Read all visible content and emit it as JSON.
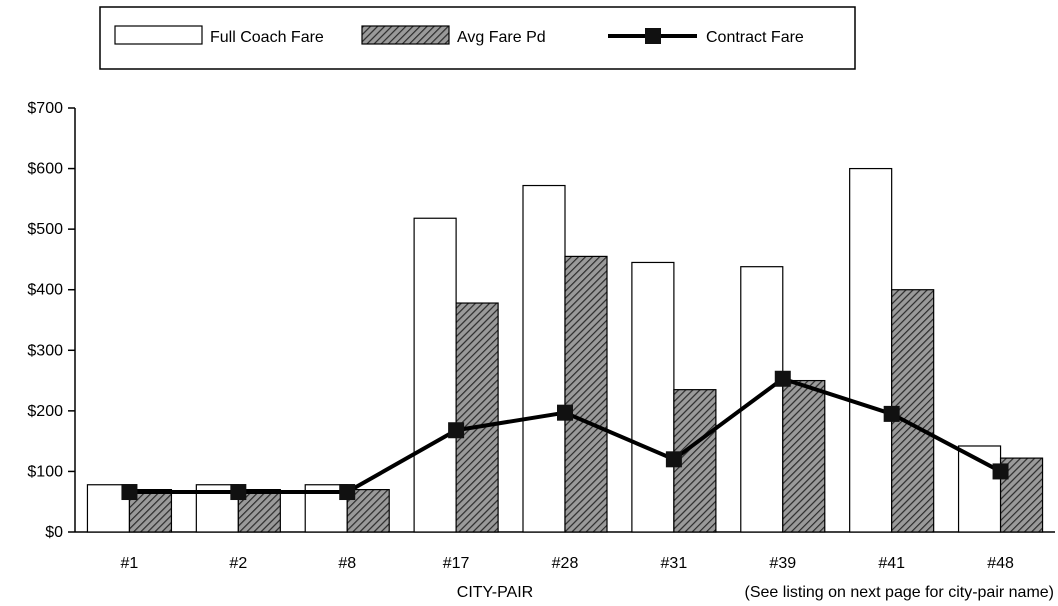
{
  "chart_data": {
    "type": "bar",
    "categories": [
      "#1",
      "#2",
      "#8",
      "#17",
      "#28",
      "#31",
      "#39",
      "#41",
      "#48"
    ],
    "series": [
      {
        "name": "Full Coach Fare",
        "kind": "bar",
        "values": [
          78,
          78,
          78,
          518,
          572,
          445,
          438,
          600,
          142
        ],
        "color": "#ffffff",
        "pattern": "none"
      },
      {
        "name": "Avg Fare Pd",
        "kind": "bar",
        "values": [
          70,
          70,
          70,
          378,
          455,
          235,
          250,
          400,
          122
        ],
        "color": "#6e6e6e",
        "pattern": "diagonal-hatch"
      },
      {
        "name": "Contract Fare",
        "kind": "line",
        "values": [
          66,
          66,
          66,
          168,
          197,
          120,
          253,
          195,
          100
        ],
        "color": "#000000",
        "marker": "square"
      }
    ],
    "title": "",
    "xlabel": "CITY-PAIR",
    "xnote": "(See listing on next page for city-pair name)",
    "ylabel": "",
    "ylim": [
      0,
      700
    ],
    "yticks": [
      {
        "value": 0,
        "label": "$0"
      },
      {
        "value": 100,
        "label": "$100"
      },
      {
        "value": 200,
        "label": "$200"
      },
      {
        "value": 300,
        "label": "$300"
      },
      {
        "value": 400,
        "label": "$400"
      },
      {
        "value": 500,
        "label": "$500"
      },
      {
        "value": 600,
        "label": "$600"
      },
      {
        "value": 700,
        "label": "$700"
      }
    ],
    "grid": false,
    "legend": "top"
  }
}
